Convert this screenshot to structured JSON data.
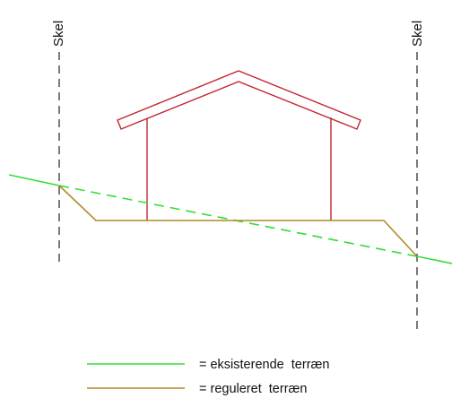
{
  "diagram": {
    "boundary_left_label": "Skel",
    "boundary_right_label": "Skel",
    "legend": [
      {
        "text": "= eksisterende  terræn",
        "color": "#33dd33"
      },
      {
        "text": "= reguleret  terræn",
        "color": "#b08a2a"
      }
    ],
    "colors": {
      "house": "#c2262e",
      "existing_terrain": "#33dd33",
      "regulated_terrain": "#b08a2a",
      "boundary": "#222222"
    }
  }
}
